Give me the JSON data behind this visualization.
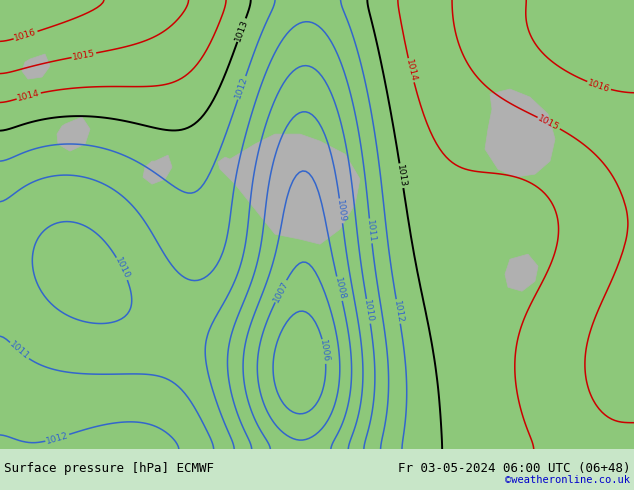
{
  "title_left": "Surface pressure [hPa] ECMWF",
  "title_right": "Fr 03-05-2024 06:00 UTC (06+48)",
  "copyright": "©weatheronline.co.uk",
  "bottom_bar_color": "#c8e6c8",
  "bottom_text_color": "#000000",
  "copyright_color": "#0000cc",
  "contour_blue_color": "#3366cc",
  "contour_black_color": "#000000",
  "contour_red_color": "#cc0000",
  "land_color": "#8dc87a",
  "gray_feature_color": "#b0b0b0",
  "figwidth": 6.34,
  "figheight": 4.9,
  "dpi": 100
}
